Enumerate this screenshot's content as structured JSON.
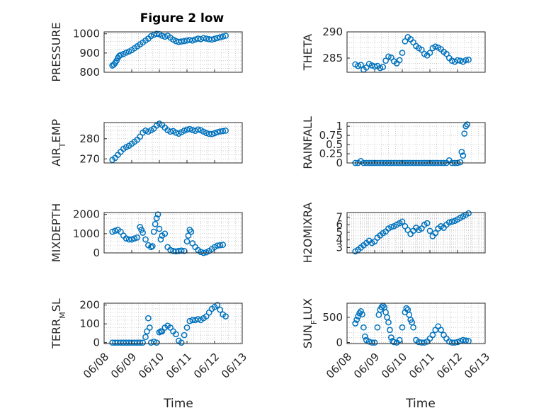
{
  "figure": {
    "title": "Figure 2 low",
    "xlabel": "Time",
    "x_ticks": [
      "06/08",
      "06/09",
      "06/10",
      "06/11",
      "06/12",
      "06/13"
    ]
  },
  "colors": {
    "marker": "#0072BD",
    "axis": "#262626",
    "grid": "#b0b0b0",
    "background": "#ffffff"
  },
  "chart_data": [
    {
      "type": "scatter",
      "title": "Figure 2 low",
      "ylabel": "PRESSURE",
      "xlabel": "",
      "xlim": [
        "06/08",
        "06/13"
      ],
      "ylim": [
        800,
        1010
      ],
      "y_ticks": [
        800,
        900,
        1000
      ],
      "grid": true,
      "x": [
        8.3,
        8.35,
        8.4,
        8.45,
        8.5,
        8.55,
        8.6,
        8.7,
        8.8,
        8.9,
        9.0,
        9.1,
        9.2,
        9.3,
        9.4,
        9.5,
        9.6,
        9.7,
        9.8,
        9.9,
        10.0,
        10.1,
        10.2,
        10.3,
        10.4,
        10.5,
        10.6,
        10.7,
        10.8,
        10.9,
        11.0,
        11.1,
        11.2,
        11.3,
        11.4,
        11.5,
        11.6,
        11.7,
        11.8,
        11.9,
        12.0,
        12.1,
        12.2,
        12.3,
        12.4
      ],
      "y": [
        835,
        840,
        848,
        860,
        875,
        885,
        890,
        895,
        902,
        908,
        915,
        925,
        935,
        945,
        955,
        965,
        975,
        988,
        995,
        1000,
        998,
        990,
        985,
        990,
        980,
        970,
        962,
        958,
        960,
        962,
        965,
        968,
        965,
        970,
        975,
        972,
        978,
        975,
        972,
        970,
        974,
        978,
        982,
        986,
        990
      ]
    },
    {
      "type": "scatter",
      "ylabel": "THETA",
      "xlabel": "",
      "xlim": [
        "06/08",
        "06/13"
      ],
      "ylim": [
        282.3,
        290
      ],
      "y_ticks": [
        285,
        290
      ],
      "grid": true,
      "x": [
        8.3,
        8.4,
        8.5,
        8.6,
        8.7,
        8.8,
        8.9,
        9.0,
        9.1,
        9.2,
        9.3,
        9.4,
        9.5,
        9.6,
        9.7,
        9.8,
        9.9,
        10.0,
        10.1,
        10.2,
        10.3,
        10.4,
        10.5,
        10.6,
        10.7,
        10.8,
        10.9,
        11.0,
        11.1,
        11.2,
        11.3,
        11.4,
        11.5,
        11.6,
        11.7,
        11.8,
        11.9,
        12.0,
        12.1,
        12.2,
        12.3,
        12.4
      ],
      "y": [
        283.8,
        283.5,
        283.7,
        282.8,
        283.2,
        283.9,
        283.6,
        283.4,
        283.5,
        283.1,
        283.3,
        284.5,
        285.3,
        285.1,
        284.4,
        284.0,
        284.6,
        286.0,
        288.2,
        289.0,
        288.6,
        288.0,
        287.3,
        286.9,
        286.6,
        285.8,
        285.5,
        286.0,
        286.9,
        287.2,
        287.0,
        286.7,
        286.2,
        285.8,
        285.0,
        284.5,
        284.3,
        284.6,
        284.5,
        284.3,
        284.6,
        284.7
      ]
    },
    {
      "type": "scatter",
      "ylabel": "AIR_TEMP",
      "xlabel": "",
      "xlim": [
        "06/08",
        "06/13"
      ],
      "ylim": [
        268,
        288
      ],
      "y_ticks": [
        270,
        280
      ],
      "grid": true,
      "x": [
        8.3,
        8.4,
        8.5,
        8.6,
        8.7,
        8.8,
        8.9,
        9.0,
        9.1,
        9.2,
        9.3,
        9.4,
        9.5,
        9.6,
        9.7,
        9.8,
        9.9,
        10.0,
        10.1,
        10.2,
        10.3,
        10.4,
        10.5,
        10.6,
        10.7,
        10.8,
        10.9,
        11.0,
        11.1,
        11.2,
        11.3,
        11.4,
        11.5,
        11.6,
        11.7,
        11.8,
        11.9,
        12.0,
        12.1,
        12.2,
        12.3,
        12.4
      ],
      "y": [
        269.5,
        270.5,
        272,
        273.5,
        275,
        275.8,
        276.5,
        277.5,
        278.5,
        279.5,
        281,
        283,
        284,
        283.5,
        284.2,
        285,
        286.5,
        287.5,
        286.8,
        285.5,
        284.2,
        283.5,
        283.8,
        283,
        282.5,
        283.2,
        284,
        284.5,
        284.8,
        284.3,
        283.9,
        284.6,
        284.2,
        283.5,
        282.8,
        282.4,
        282.3,
        282.7,
        283.2,
        283.6,
        283.8,
        284
      ]
    },
    {
      "type": "scatter",
      "ylabel": "RAINFALL",
      "xlabel": "",
      "xlim": [
        "06/08",
        "06/13"
      ],
      "ylim": [
        0,
        1.1
      ],
      "y_ticks": [
        0,
        0.5,
        1
      ],
      "y_tick_labels": [
        "0",
        "0.5",
        "1"
      ],
      "y_tick_values": [
        0,
        0.25,
        0.5,
        0.75,
        1
      ],
      "y_tick_text": [
        "0",
        "0.25",
        "0.5",
        "0.75",
        "1"
      ],
      "grid": true,
      "x": [
        8.3,
        8.4,
        8.5,
        8.6,
        8.7,
        8.8,
        8.9,
        9.0,
        9.1,
        9.2,
        9.3,
        9.4,
        9.5,
        9.6,
        9.7,
        9.8,
        9.9,
        10.0,
        10.1,
        10.2,
        10.3,
        10.4,
        10.5,
        10.6,
        10.7,
        10.8,
        10.9,
        11.0,
        11.1,
        11.2,
        11.3,
        11.4,
        11.5,
        11.6,
        11.7,
        11.8,
        11.9,
        12.0,
        12.1,
        12.15,
        12.2,
        12.25,
        12.3,
        12.35
      ],
      "y": [
        0,
        0,
        0.05,
        0,
        0,
        0,
        0,
        0,
        0,
        0,
        0,
        0,
        0,
        0,
        0,
        0,
        0,
        0,
        0,
        0,
        0,
        0,
        0,
        0,
        0,
        0,
        0,
        0,
        0,
        0,
        0,
        0,
        0,
        0,
        0.07,
        0,
        0,
        0,
        0.02,
        0.3,
        0.2,
        0.8,
        1.0,
        1.05
      ]
    },
    {
      "type": "scatter",
      "ylabel": "MIXDEPTH",
      "xlabel": "",
      "xlim": [
        "06/08",
        "06/13"
      ],
      "ylim": [
        0,
        2100
      ],
      "y_ticks": [
        0,
        1000,
        2000
      ],
      "grid": true,
      "x": [
        8.3,
        8.4,
        8.5,
        8.6,
        8.7,
        8.8,
        8.9,
        9.0,
        9.1,
        9.2,
        9.3,
        9.35,
        9.4,
        9.5,
        9.6,
        9.7,
        9.75,
        9.8,
        9.85,
        9.9,
        9.95,
        10.0,
        10.05,
        10.1,
        10.2,
        10.3,
        10.4,
        10.5,
        10.6,
        10.7,
        10.8,
        10.9,
        11.0,
        11.05,
        11.1,
        11.15,
        11.2,
        11.3,
        11.4,
        11.5,
        11.6,
        11.7,
        11.8,
        11.9,
        12.0,
        12.1,
        12.2,
        12.3
      ],
      "y": [
        1100,
        1150,
        1200,
        1100,
        900,
        750,
        700,
        700,
        750,
        800,
        1350,
        1200,
        1050,
        700,
        400,
        300,
        350,
        1100,
        1500,
        1800,
        2000,
        1250,
        700,
        900,
        1000,
        300,
        150,
        100,
        80,
        100,
        120,
        100,
        600,
        900,
        1200,
        1100,
        500,
        300,
        150,
        50,
        0,
        30,
        100,
        200,
        300,
        380,
        400,
        420
      ]
    },
    {
      "type": "scatter",
      "ylabel": "H2OMIXRA",
      "xlabel": "",
      "xlim": [
        "06/08",
        "06/13"
      ],
      "ylim": [
        2.3,
        7.6
      ],
      "y_ticks": [
        3,
        4,
        5,
        6,
        7
      ],
      "grid": true,
      "x": [
        8.3,
        8.4,
        8.5,
        8.6,
        8.7,
        8.8,
        8.9,
        9.0,
        9.1,
        9.2,
        9.3,
        9.4,
        9.5,
        9.6,
        9.7,
        9.8,
        9.9,
        10.0,
        10.1,
        10.2,
        10.3,
        10.4,
        10.5,
        10.6,
        10.7,
        10.8,
        10.9,
        11.0,
        11.1,
        11.2,
        11.3,
        11.4,
        11.5,
        11.6,
        11.7,
        11.8,
        11.9,
        12.0,
        12.1,
        12.2,
        12.3,
        12.4
      ],
      "y": [
        2.5,
        2.7,
        3.0,
        3.3,
        3.6,
        3.9,
        3.6,
        3.8,
        4.3,
        4.6,
        4.9,
        5.1,
        5.5,
        5.7,
        5.8,
        6.0,
        6.2,
        6.4,
        5.8,
        5.3,
        4.8,
        5.2,
        5.6,
        5.3,
        5.5,
        6.0,
        6.2,
        5.2,
        4.5,
        4.9,
        5.5,
        5.8,
        5.6,
        6.0,
        6.3,
        6.4,
        6.5,
        6.7,
        6.9,
        7.1,
        7.3,
        7.5
      ]
    },
    {
      "type": "scatter",
      "ylabel": "TERR_MSL",
      "xlabel": "Time",
      "xlim": [
        "06/08",
        "06/13"
      ],
      "ylim": [
        -5,
        210
      ],
      "y_ticks": [
        0,
        100,
        200
      ],
      "x_ticks": [
        "06/08",
        "06/09",
        "06/10",
        "06/11",
        "06/12",
        "06/13"
      ],
      "grid": true,
      "x": [
        8.3,
        8.4,
        8.5,
        8.6,
        8.7,
        8.8,
        8.9,
        9.0,
        9.1,
        9.2,
        9.3,
        9.4,
        9.5,
        9.55,
        9.6,
        9.65,
        9.7,
        9.8,
        9.9,
        10.0,
        10.05,
        10.1,
        10.2,
        10.3,
        10.4,
        10.5,
        10.6,
        10.7,
        10.8,
        10.9,
        11.0,
        11.1,
        11.2,
        11.3,
        11.4,
        11.5,
        11.6,
        11.7,
        11.8,
        11.9,
        12.0,
        12.1,
        12.2,
        12.3,
        12.4
      ],
      "y": [
        0,
        0,
        0,
        0,
        0,
        0,
        0,
        0,
        0,
        0,
        0,
        0,
        30,
        60,
        130,
        80,
        0,
        5,
        0,
        55,
        60,
        60,
        80,
        90,
        80,
        60,
        45,
        10,
        0,
        40,
        80,
        115,
        120,
        120,
        125,
        120,
        130,
        140,
        160,
        180,
        190,
        200,
        175,
        150,
        140
      ]
    },
    {
      "type": "scatter",
      "ylabel": "SUN_FLUX",
      "xlabel": "Time",
      "xlim": [
        "06/08",
        "06/13"
      ],
      "ylim": [
        -20,
        780
      ],
      "y_ticks": [
        0,
        500
      ],
      "x_ticks": [
        "06/08",
        "06/09",
        "06/10",
        "06/11",
        "06/12",
        "06/13"
      ],
      "grid": true,
      "x": [
        8.3,
        8.35,
        8.4,
        8.45,
        8.5,
        8.55,
        8.6,
        8.65,
        8.7,
        8.8,
        8.9,
        9.0,
        9.1,
        9.15,
        9.2,
        9.25,
        9.3,
        9.35,
        9.4,
        9.45,
        9.5,
        9.55,
        9.6,
        9.65,
        9.7,
        9.8,
        9.9,
        10.0,
        10.1,
        10.15,
        10.2,
        10.25,
        10.3,
        10.35,
        10.4,
        10.5,
        10.6,
        10.7,
        10.8,
        10.9,
        11.0,
        11.1,
        11.2,
        11.3,
        11.4,
        11.5,
        11.6,
        11.7,
        11.8,
        11.9,
        12.0,
        12.1,
        12.2,
        12.3,
        12.4
      ],
      "y": [
        380,
        450,
        520,
        580,
        620,
        560,
        300,
        120,
        50,
        20,
        0,
        0,
        300,
        550,
        650,
        700,
        730,
        700,
        600,
        500,
        400,
        250,
        100,
        30,
        10,
        0,
        50,
        300,
        600,
        680,
        650,
        550,
        450,
        400,
        300,
        50,
        10,
        0,
        0,
        20,
        80,
        150,
        250,
        320,
        250,
        150,
        80,
        20,
        0,
        0,
        10,
        30,
        50,
        40,
        30
      ]
    }
  ]
}
